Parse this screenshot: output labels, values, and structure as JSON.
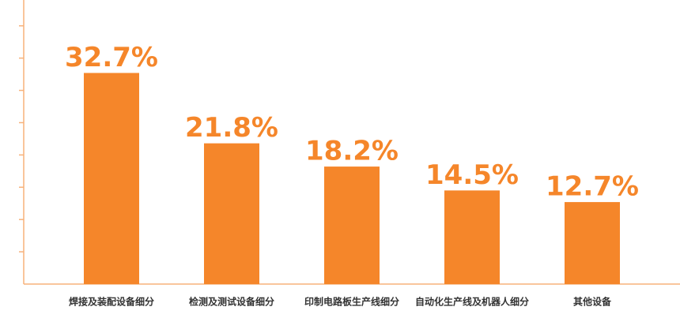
{
  "chart_data": {
    "type": "bar",
    "categories": [
      "焊接及装配设备细分",
      "检测及测试设备细分",
      "印制电路板生产线细分",
      "自动化生产线及机器人细分",
      "其他设备"
    ],
    "values": [
      32.7,
      21.8,
      18.2,
      14.5,
      12.7
    ],
    "value_labels": [
      "32.7%",
      "21.8%",
      "18.2%",
      "14.5%",
      "12.7%"
    ],
    "color": "#f5862a",
    "ylim": [
      0,
      44
    ],
    "yticks": [
      5,
      10,
      15,
      20,
      25,
      30,
      35,
      40
    ],
    "grid": false
  }
}
